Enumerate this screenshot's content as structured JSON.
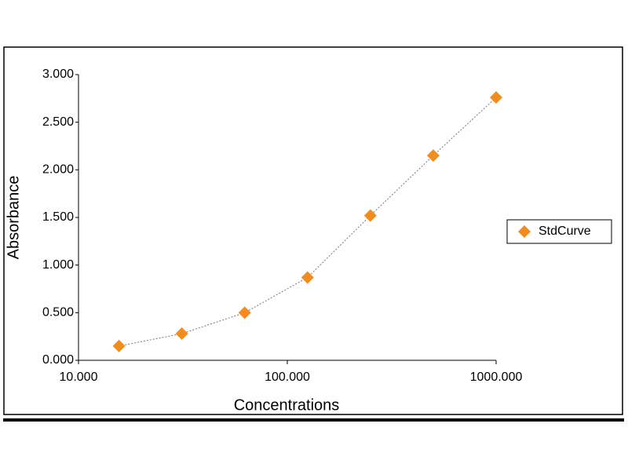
{
  "chart_data": {
    "type": "scatter",
    "x_label": "Concentrations",
    "y_label": "Absorbance",
    "x_log": true,
    "xlim": [
      10,
      1000
    ],
    "xticks": [
      {
        "value": 10,
        "label": "10.000"
      },
      {
        "value": 100,
        "label": "100.000"
      },
      {
        "value": 1000,
        "label": "1000.000"
      }
    ],
    "ylim": [
      0,
      3
    ],
    "yticks": [
      {
        "value": 0,
        "label": "0.000"
      },
      {
        "value": 0.5,
        "label": "0.500"
      },
      {
        "value": 1,
        "label": "1.000"
      },
      {
        "value": 1.5,
        "label": "1.500"
      },
      {
        "value": 2,
        "label": "2.000"
      },
      {
        "value": 2.5,
        "label": "2.500"
      },
      {
        "value": 3,
        "label": "3.000"
      }
    ],
    "legend": "right",
    "series": [
      {
        "name": "StdCurve",
        "color": "#f28c1e",
        "x": [
          15.625,
          31.25,
          62.5,
          125,
          250,
          500,
          1000
        ],
        "values": [
          0.15,
          0.28,
          0.5,
          0.87,
          1.52,
          2.15,
          2.76
        ]
      }
    ]
  }
}
